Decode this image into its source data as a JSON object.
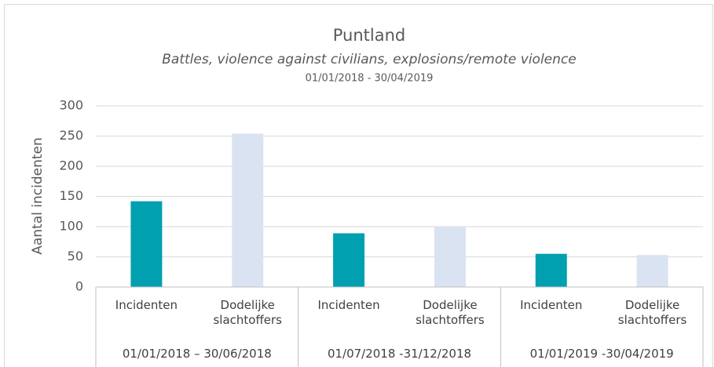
{
  "chart_data": {
    "type": "bar",
    "title": "Puntland",
    "subtitle": "Battles, violence against civilians, explosions/remote violence",
    "period": "01/01/2018 - 30/04/2019",
    "y_label": "Aantal incidenten",
    "categories": [
      "Incidenten",
      "Dodelijke slachtoffers",
      "Incidenten",
      "Dodelijke slachtoffers",
      "Incidenten",
      "Dodelijke slachtoffers"
    ],
    "groups": [
      "01/01/2018 – 30/06/2018",
      "01/07/2018 -31/12/2018",
      "01/01/2019 -30/04/2019"
    ],
    "values": [
      142,
      254,
      89,
      100,
      55,
      53
    ],
    "colors": [
      "#00a0b0",
      "#dae3f1",
      "#00a0b0",
      "#dae3f1",
      "#00a0b0",
      "#dae3f1"
    ],
    "ylim": [
      0,
      300
    ],
    "yticks": [
      0,
      50,
      100,
      150,
      200,
      250,
      300
    ],
    "grid": true
  }
}
